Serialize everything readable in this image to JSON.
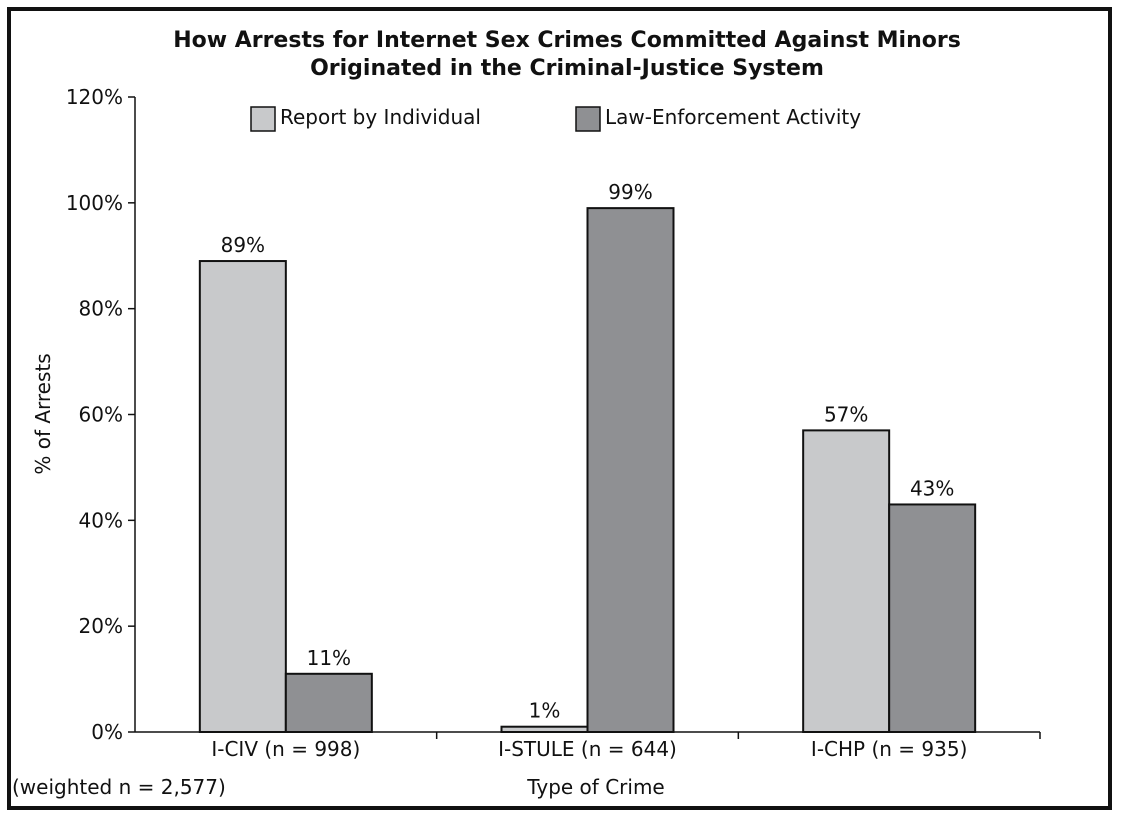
{
  "chart_data": {
    "type": "bar",
    "title_lines": [
      "How Arrests for Internet Sex Crimes Committed Against Minors",
      "Originated in the Criminal-Justice System"
    ],
    "xlabel": "Type of Crime",
    "ylabel": "% of Arrests",
    "note": "(weighted n = 2,577)",
    "categories": [
      "I-CIV (n = 998)",
      "I-STULE (n = 644)",
      "I-CHP (n = 935)"
    ],
    "series": [
      {
        "name": "Report by Individual",
        "values": [
          89,
          1,
          57
        ],
        "labels": [
          "89%",
          "1%",
          "57%"
        ],
        "color": "#c8c9cb"
      },
      {
        "name": "Law-Enforcement Activity",
        "values": [
          11,
          99,
          43
        ],
        "labels": [
          "11%",
          "99%",
          "43%"
        ],
        "color": "#8f9093"
      }
    ],
    "ylim": [
      0,
      120
    ],
    "yticks": [
      0,
      20,
      40,
      60,
      80,
      100,
      120
    ],
    "ytick_labels": [
      "0%",
      "20%",
      "40%",
      "60%",
      "80%",
      "100%",
      "120%"
    ],
    "grid": false,
    "legend_position": "top"
  }
}
